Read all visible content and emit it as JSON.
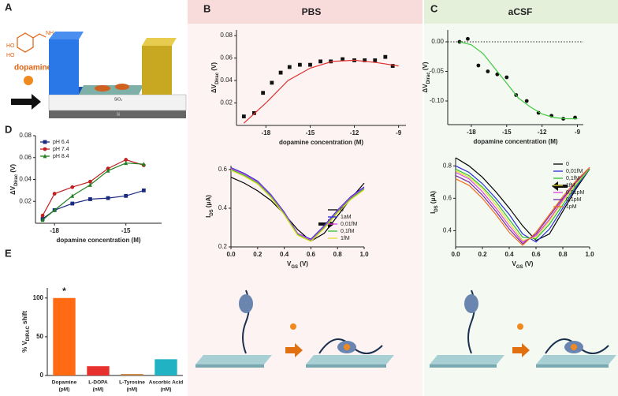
{
  "panel_labels": [
    "A",
    "B",
    "C",
    "D",
    "E"
  ],
  "panel_headers": {
    "B": "PBS",
    "C": "aCSF"
  },
  "diagram": {
    "molecule": "dopamine",
    "atoms": [
      "HO",
      "HO",
      "NH₂"
    ],
    "layers": [
      "SiO₂",
      "Si"
    ]
  },
  "chart_data": [
    {
      "type": "scatter",
      "xlabel": [
        {
          "text": "dopamine concentration (M)"
        }
      ],
      "ylabel": [
        {
          "text": "ΔV"
        },
        {
          "text": "Dirac",
          "sub": true
        },
        {
          "text": " (V)"
        }
      ],
      "xlim": [
        -20,
        -8.5
      ],
      "xticks": [
        -18,
        -15,
        -12,
        -9
      ],
      "ylim": [
        0,
        0.085
      ],
      "yticks": [
        {
          "value": 0.02,
          "label": "0.02"
        },
        {
          "value": 0.04,
          "label": "0.04"
        },
        {
          "value": 0.06,
          "label": "0.06"
        },
        {
          "value": 0.08,
          "label": "0.08"
        }
      ],
      "series": [
        {
          "mode": "markers",
          "marker": "square",
          "color": "#111111",
          "x": [
            -19.5,
            -18.8,
            -18.2,
            -17.6,
            -17,
            -16.4,
            -15.7,
            -15,
            -14.3,
            -13.6,
            -12.8,
            -12,
            -11.3,
            -10.6,
            -9.9,
            -9.4
          ],
          "values": [
            0.008,
            0.011,
            0.029,
            0.038,
            0.047,
            0.052,
            0.054,
            0.054,
            0.057,
            0.057,
            0.059,
            0.058,
            0.058,
            0.058,
            0.061,
            0.053
          ]
        },
        {
          "mode": "line",
          "color": "#e03030",
          "x": [
            -19.5,
            -18,
            -16.5,
            -15,
            -13.5,
            -12,
            -10.5,
            -9
          ],
          "values": [
            0.002,
            0.02,
            0.04,
            0.051,
            0.057,
            0.058,
            0.056,
            0.053
          ]
        }
      ]
    },
    {
      "type": "line",
      "xlabel": [
        {
          "text": "V"
        },
        {
          "text": "GS",
          "sub": true
        },
        {
          "text": " (V)"
        }
      ],
      "ylabel": [
        {
          "text": "I"
        },
        {
          "text": "DS",
          "sub": true
        },
        {
          "text": " (μA)"
        }
      ],
      "xlim": [
        0,
        1
      ],
      "xticks": [
        {
          "value": 0,
          "label": "0.0"
        },
        0.2,
        0.4,
        0.6,
        0.8,
        {
          "value": 1,
          "label": "1.0"
        }
      ],
      "ylim": [
        0.2,
        0.62
      ],
      "yticks": [
        0.2,
        0.4,
        0.6
      ],
      "legend": "lower right",
      "x": [
        0,
        0.1,
        0.2,
        0.3,
        0.4,
        0.5,
        0.6,
        0.7,
        0.8,
        0.9,
        1.0
      ],
      "series": [
        {
          "name": "0",
          "mode": "line",
          "color": "#000000",
          "values": [
            0.56,
            0.53,
            0.49,
            0.44,
            0.37,
            0.29,
            0.23,
            0.27,
            0.36,
            0.45,
            0.53
          ]
        },
        {
          "name": "1aM",
          "mode": "line",
          "color": "#2b2bd6",
          "values": [
            0.61,
            0.58,
            0.54,
            0.47,
            0.38,
            0.27,
            0.24,
            0.31,
            0.39,
            0.46,
            0.51
          ]
        },
        {
          "name": "0,01fM",
          "mode": "line",
          "color": "#e040e0",
          "values": [
            0.605,
            0.575,
            0.535,
            0.465,
            0.375,
            0.27,
            0.235,
            0.305,
            0.385,
            0.455,
            0.505
          ]
        },
        {
          "name": "0,1fM",
          "mode": "line",
          "color": "#30c030",
          "values": [
            0.6,
            0.57,
            0.53,
            0.46,
            0.37,
            0.265,
            0.23,
            0.3,
            0.38,
            0.45,
            0.5
          ]
        },
        {
          "name": "1fM",
          "mode": "line",
          "color": "#e6e030",
          "values": [
            0.595,
            0.565,
            0.525,
            0.455,
            0.365,
            0.26,
            0.228,
            0.295,
            0.375,
            0.445,
            0.495
          ]
        }
      ]
    },
    {
      "type": "scatter",
      "xlabel": [
        {
          "text": "dopamine concentration (M)"
        }
      ],
      "ylabel": [
        {
          "text": "ΔV"
        },
        {
          "text": "Dirac",
          "sub": true
        },
        {
          "text": " (V)"
        }
      ],
      "xlim": [
        -20,
        -8.5
      ],
      "xticks": [
        -18,
        -15,
        -12,
        -9
      ],
      "ylim": [
        -0.14,
        0.02
      ],
      "yticks": [
        {
          "value": 0,
          "label": "0.00"
        },
        -0.05,
        {
          "value": -0.1,
          "label": "-0.10"
        }
      ],
      "hline": 0,
      "series": [
        {
          "mode": "markers",
          "marker": "circle",
          "color": "#111111",
          "x": [
            -19,
            -18.3,
            -17.4,
            -16.6,
            -15.8,
            -15,
            -14.2,
            -13.3,
            -12.3,
            -11.2,
            -10.2,
            -9.2
          ],
          "values": [
            0,
            0.005,
            -0.04,
            -0.05,
            -0.055,
            -0.06,
            -0.09,
            -0.1,
            -0.12,
            -0.125,
            -0.13,
            -0.128
          ]
        },
        {
          "mode": "line",
          "color": "#40c840",
          "x": [
            -19,
            -18,
            -17,
            -16,
            -15,
            -14,
            -13,
            -12,
            -11,
            -10,
            -9
          ],
          "values": [
            0,
            -0.005,
            -0.02,
            -0.045,
            -0.07,
            -0.095,
            -0.11,
            -0.122,
            -0.128,
            -0.13,
            -0.13
          ]
        }
      ]
    },
    {
      "type": "line",
      "xlabel": [
        {
          "text": "V"
        },
        {
          "text": "GS",
          "sub": true
        },
        {
          "text": " (V)"
        }
      ],
      "ylabel": [
        {
          "text": "I"
        },
        {
          "text": "DS",
          "sub": true
        },
        {
          "text": " (μA)"
        }
      ],
      "xlim": [
        0,
        1
      ],
      "xticks": [
        {
          "value": 0,
          "label": "0.0"
        },
        0.2,
        0.4,
        0.6,
        0.8,
        {
          "value": 1,
          "label": "1.0"
        }
      ],
      "ylim": [
        0.3,
        0.85
      ],
      "yticks": [
        0.4,
        0.6,
        0.8
      ],
      "legend": "upper right",
      "x": [
        0,
        0.1,
        0.2,
        0.3,
        0.4,
        0.5,
        0.6,
        0.7,
        0.8,
        0.9,
        1.0
      ],
      "series": [
        {
          "name": "0",
          "mode": "line",
          "color": "#000000",
          "values": [
            0.85,
            0.8,
            0.73,
            0.64,
            0.54,
            0.43,
            0.34,
            0.38,
            0.52,
            0.66,
            0.78
          ]
        },
        {
          "name": "0,01fM",
          "mode": "line",
          "color": "#2b2bd6",
          "values": [
            0.8,
            0.76,
            0.69,
            0.6,
            0.5,
            0.38,
            0.33,
            0.41,
            0.54,
            0.67,
            0.78
          ]
        },
        {
          "name": "0,1fM",
          "mode": "line",
          "color": "#30c030",
          "values": [
            0.78,
            0.74,
            0.67,
            0.58,
            0.47,
            0.36,
            0.35,
            0.44,
            0.56,
            0.68,
            0.78
          ]
        },
        {
          "name": "1fM",
          "mode": "line",
          "color": "#e6e030",
          "values": [
            0.77,
            0.73,
            0.66,
            0.56,
            0.45,
            0.34,
            0.36,
            0.46,
            0.58,
            0.69,
            0.79
          ]
        },
        {
          "name": "0,01pM",
          "mode": "line",
          "color": "#e040e0",
          "values": [
            0.76,
            0.72,
            0.64,
            0.54,
            0.43,
            0.33,
            0.37,
            0.47,
            0.59,
            0.7,
            0.79
          ]
        },
        {
          "name": "0,1pM",
          "mode": "line",
          "color": "#7a2aa8",
          "values": [
            0.74,
            0.7,
            0.62,
            0.52,
            0.41,
            0.32,
            0.38,
            0.49,
            0.6,
            0.7,
            0.79
          ]
        },
        {
          "name": "1pM",
          "mode": "line",
          "color": "#f07020",
          "values": [
            0.72,
            0.68,
            0.6,
            0.5,
            0.39,
            0.31,
            0.39,
            0.5,
            0.61,
            0.71,
            0.79
          ]
        }
      ]
    },
    {
      "type": "scatter",
      "xlabel": [
        {
          "text": "dopamine concentration (M)"
        }
      ],
      "ylabel": [
        {
          "text": "ΔV"
        },
        {
          "text": "Dirac",
          "sub": true
        },
        {
          "text": " (V)"
        }
      ],
      "xlim": [
        -18.8,
        -13.5
      ],
      "xticks": [
        -18,
        -15
      ],
      "ylim": [
        0,
        0.08
      ],
      "yticks": [
        {
          "value": 0.02,
          "label": "0.02"
        },
        {
          "value": 0.04,
          "label": "0.04"
        },
        {
          "value": 0.06,
          "label": "0.06"
        },
        {
          "value": 0.08,
          "label": "0.08"
        }
      ],
      "legend": "upper left",
      "series": [
        {
          "name": "pH 6.4",
          "mode": "lines+markers",
          "marker": "square",
          "color": "#1a2a80",
          "x": [
            -18.5,
            -18,
            -17.25,
            -16.5,
            -15.75,
            -15,
            -14.25
          ],
          "values": [
            0.004,
            0.012,
            0.018,
            0.022,
            0.023,
            0.025,
            0.03
          ]
        },
        {
          "name": "pH 7.4",
          "mode": "lines+markers",
          "marker": "circle",
          "color": "#c02020",
          "x": [
            -18.5,
            -18,
            -17.25,
            -16.5,
            -15.75,
            -15,
            -14.25
          ],
          "values": [
            0.007,
            0.027,
            0.033,
            0.038,
            0.05,
            0.058,
            0.053
          ]
        },
        {
          "name": "pH 8.4",
          "mode": "lines+markers",
          "marker": "triangle",
          "color": "#208020",
          "x": [
            -18.5,
            -18,
            -17.25,
            -16.5,
            -15.75,
            -15,
            -14.25
          ],
          "values": [
            0.003,
            0.012,
            0.025,
            0.035,
            0.048,
            0.055,
            0.054
          ]
        }
      ]
    },
    {
      "type": "bar",
      "ylabel": [
        {
          "text": "% V"
        },
        {
          "text": "DIRAC",
          "sub": true
        },
        {
          "text": " shift"
        }
      ],
      "categories": [
        "Dopamine",
        "L-DOPA",
        "L-Tyrosine",
        "Ascorbic Acid"
      ],
      "category_units": [
        "(pM)",
        "(nM)",
        "(nM)",
        "(nM)"
      ],
      "values": [
        100,
        12,
        2,
        21
      ],
      "colors": [
        "#ff6a13",
        "#e8312f",
        "#c98a4a",
        "#21b3c4"
      ],
      "ylim": [
        0,
        113
      ],
      "yticks": [
        0,
        50,
        100
      ],
      "annotations": [
        {
          "text": "*"
        }
      ]
    }
  ]
}
